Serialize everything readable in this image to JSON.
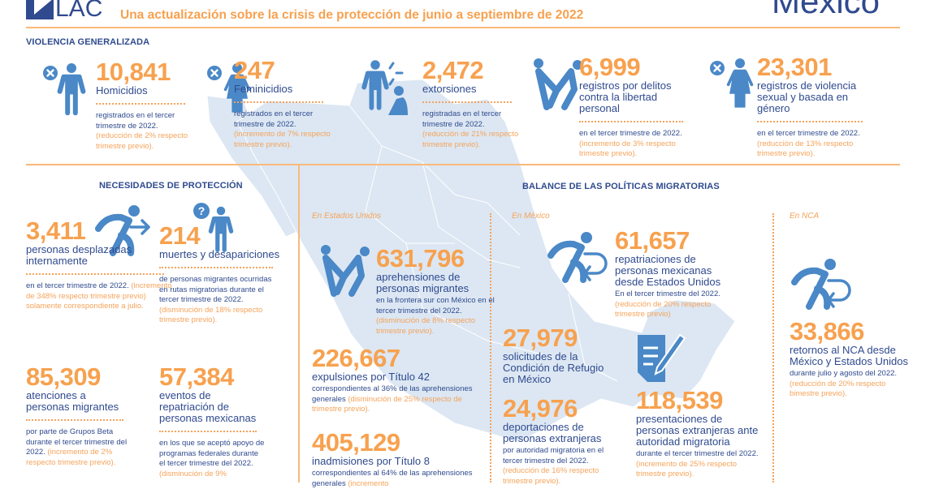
{
  "header": {
    "logo_text": "LAC",
    "title": "Una actualización sobre la crisis de protección de junio a septiembre de 2022",
    "country": "México"
  },
  "sections": {
    "violence": "VIOLENCIA GENERALIZADA",
    "needs": "NECESIDADES DE PROTECCIÓN",
    "policies": "BALANCE DE LAS POLÍTICAS MIGRATORIAS",
    "in_us": "En Estados Unidos",
    "in_mx": "En México",
    "in_nca": "En NCA"
  },
  "colors": {
    "accent": "#f7a14f",
    "navy": "#2f4a8e",
    "icon": "#4a88c7",
    "map": "#dce7f3"
  },
  "stats": [
    {
      "id": "homicidios",
      "icon": "victim-male-icon",
      "num": "10,841",
      "label": "Homicidios",
      "desc": "registrados en el tercer trimestre de 2022.",
      "note": "(reducción de 2% respecto trimestre previo).",
      "dots": true
    },
    {
      "id": "feminicidios",
      "icon": "victim-female-icon",
      "num": "247",
      "label": "Feminicidios",
      "desc": "registrados en el tercer trimestre de 2022.",
      "note": "(incremento de 7% respecto trimestre previo).",
      "dots": true
    },
    {
      "id": "extorsiones",
      "icon": "extortion-icon",
      "num": "2,472",
      "label": "extorsiones",
      "desc": "registradas en el tercer trimestre de 2022.",
      "note": "(reducción de 21% respecto trimestre previo).",
      "dots": true
    },
    {
      "id": "libertad",
      "icon": "detention-icon",
      "num": "6,999",
      "label": "registros por delitos contra la libertad personal",
      "desc": "en el tercer trimestre de 2022.",
      "note": "(incremento de 3% respecto trimestre previo).",
      "dots": true
    },
    {
      "id": "violencia-genero",
      "icon": "victim-female-icon",
      "num": "23,301",
      "label": "registros de violencia sexual y basada en género",
      "desc": "en el tercer trimestre de 2022.",
      "note": "(reducción de 13% respecto trimestre previo).",
      "dots": true
    },
    {
      "id": "desplazadas",
      "icon": "displacement-icon",
      "num": "3,411",
      "label": "personas desplazadas internamente",
      "desc": "en el tercer trimestre de 2022.",
      "note": "(incremento de 348% respecto trimestre previo) solamente correspondiente a julio.",
      "dots": true
    },
    {
      "id": "muertes",
      "icon": "missing-person-icon",
      "num": "214",
      "label": "muertes y desapariciones",
      "desc": "de personas migrantes ocurridas en rutas migratorias durante el tercer trimestre de 2022.",
      "note": "(disminución de 18% respecto trimestre previo).",
      "dots": true
    },
    {
      "id": "atenciones",
      "icon": "",
      "num": "85,309",
      "label": "atenciones a personas migrantes",
      "desc": "por parte de Grupos Beta durante el tercer trimestre del 2022.",
      "note": "(incremento de 2% respecto trimestre previo).",
      "dots": true
    },
    {
      "id": "repatriacion-eventos",
      "icon": "",
      "num": "57,384",
      "label": "eventos de repatriación de personas mexicanas",
      "desc": "en los que se aceptó apoyo de programas federales durante el tercer trimestre del 2022.",
      "note": "(disminución de 9%",
      "dots": true
    },
    {
      "id": "aprehensiones",
      "icon": "detention-icon",
      "num": "631,796",
      "label": "aprehensiones de personas migrantes",
      "desc": "en la frontera sur con México en el tercer trimestre del 2022.",
      "note": "(disminución de 8% respecto trimestre previo).",
      "dots": false
    },
    {
      "id": "titulo42",
      "icon": "",
      "num": "226,667",
      "label": "expulsiones por Título 42",
      "desc": "correspondientes al 36% de las aprehensiones generales",
      "note": "(disminución de 25% respecto de trimestre previo).",
      "dots": false
    },
    {
      "id": "titulo8",
      "icon": "",
      "num": "405,129",
      "label": "inadmisiones por Título 8",
      "desc": "correspondientes al 64% de las aprehensiones generales",
      "note": "(incremento",
      "dots": false
    },
    {
      "id": "repatriaciones",
      "icon": "return-icon",
      "num": "61,657",
      "label": "repatriaciones de personas mexicanas desde Estados Unidos",
      "desc": "En el tercer trimestre del 2022.",
      "note": "(reducción de 20% respecto trimestre previo)",
      "dots": false
    },
    {
      "id": "refugio",
      "icon": "",
      "num": "27,979",
      "label": "solicitudes de la Condición de Refugio en México",
      "desc": "",
      "note": "",
      "dots": false
    },
    {
      "id": "deportaciones",
      "icon": "",
      "num": "24,976",
      "label": "deportaciones de personas extranjeras",
      "desc": "por autoridad migratoria en el tercer trimestre del 2022.",
      "note": "(reducción de 16% respecto trimestre previo).",
      "dots": false
    },
    {
      "id": "presentaciones",
      "icon": "document-icon",
      "num": "118,539",
      "label": "presentaciones de personas extranjeras ante autoridad migratoria",
      "desc": "durante el tercer trimestre del 2022.",
      "note": "(incremento de 25% respecto trimestre previo).",
      "dots": false
    },
    {
      "id": "retornos",
      "icon": "return-icon",
      "num": "33,866",
      "label": "retornos al NCA desde México y Estados Unidos",
      "desc": "durante julio y agosto del 2022.",
      "note": "(reducción de 20% respecto bimestre previo).",
      "dots": false
    }
  ]
}
